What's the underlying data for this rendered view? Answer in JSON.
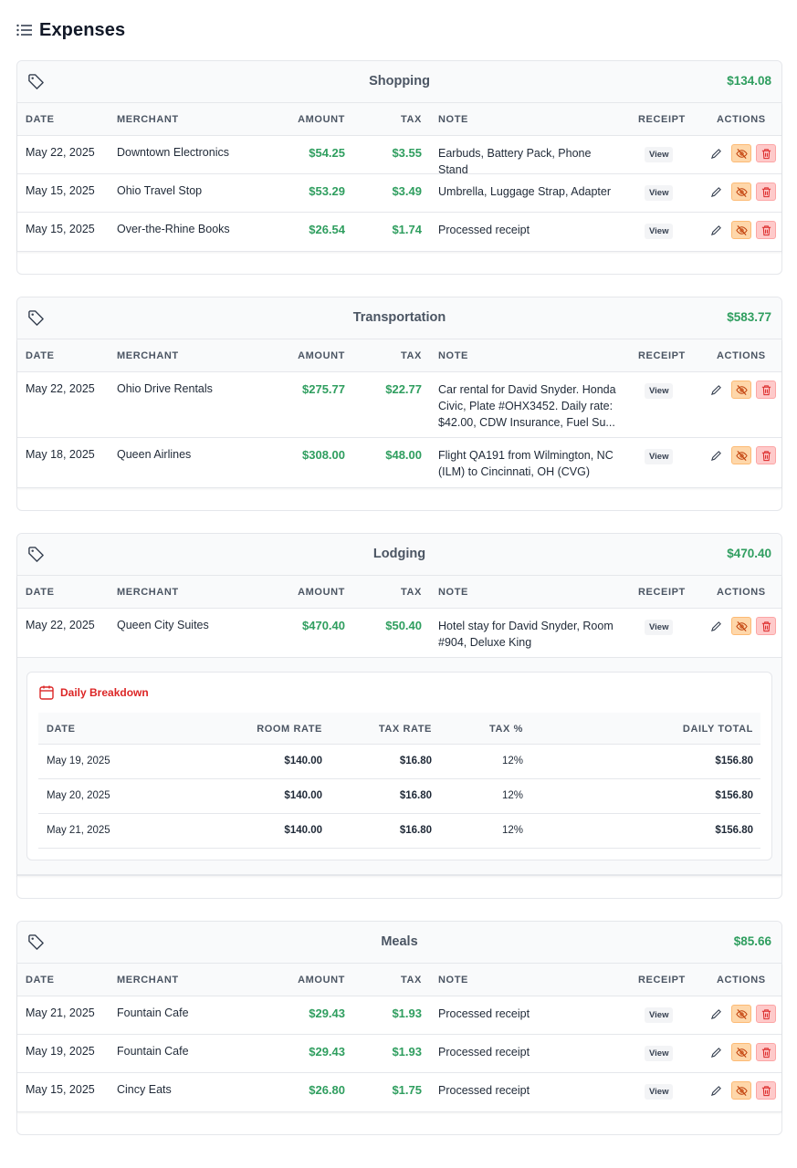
{
  "page": {
    "title": "Expenses"
  },
  "columns": {
    "date": "DATE",
    "merchant": "MERCHANT",
    "amount": "AMOUNT",
    "tax": "TAX",
    "note": "NOTE",
    "receipt": "RECEIPT",
    "actions": "ACTIONS"
  },
  "receipt_label": "View",
  "colors": {
    "money": "#2f9e5f",
    "danger": "#dc2626",
    "hide_bg": "#fed7aa",
    "delete_bg": "#fecaca"
  },
  "groups": [
    {
      "title": "Shopping",
      "total": "$134.08",
      "rows": [
        {
          "date": "May 22, 2025",
          "merchant": "Downtown Electronics",
          "amount": "$54.25",
          "tax": "$3.55",
          "note": "Earbuds, Battery Pack, Phone Stand"
        },
        {
          "date": "May 15, 2025",
          "merchant": "Ohio Travel Stop",
          "amount": "$53.29",
          "tax": "$3.49",
          "note": "Umbrella, Luggage Strap, Adapter"
        },
        {
          "date": "May 15, 2025",
          "merchant": "Over-the-Rhine Books",
          "amount": "$26.54",
          "tax": "$1.74",
          "note": "Processed receipt"
        }
      ]
    },
    {
      "title": "Transportation",
      "total": "$583.77",
      "rows": [
        {
          "date": "May 22, 2025",
          "merchant": "Ohio Drive Rentals",
          "amount": "$275.77",
          "tax": "$22.77",
          "note": "Car rental for David Snyder. Honda Civic, Plate #OHX3452. Daily rate: $42.00, CDW Insurance, Fuel Su..."
        },
        {
          "date": "May 18, 2025",
          "merchant": "Queen Airlines",
          "amount": "$308.00",
          "tax": "$48.00",
          "note": "Flight QA191 from Wilmington, NC (ILM) to Cincinnati, OH (CVG)"
        }
      ]
    },
    {
      "title": "Lodging",
      "total": "$470.40",
      "rows": [
        {
          "date": "May 22, 2025",
          "merchant": "Queen City Suites",
          "amount": "$470.40",
          "tax": "$50.40",
          "note": "Hotel stay for David Snyder, Room #904, Deluxe King"
        }
      ],
      "breakdown": {
        "title": "Daily Breakdown",
        "columns": {
          "date": "DATE",
          "room_rate": "ROOM RATE",
          "tax_rate": "TAX RATE",
          "tax_pct": "TAX %",
          "daily_total": "DAILY TOTAL"
        },
        "rows": [
          {
            "date": "May 19, 2025",
            "room_rate": "$140.00",
            "tax_rate": "$16.80",
            "tax_pct": "12%",
            "daily_total": "$156.80"
          },
          {
            "date": "May 20, 2025",
            "room_rate": "$140.00",
            "tax_rate": "$16.80",
            "tax_pct": "12%",
            "daily_total": "$156.80"
          },
          {
            "date": "May 21, 2025",
            "room_rate": "$140.00",
            "tax_rate": "$16.80",
            "tax_pct": "12%",
            "daily_total": "$156.80"
          }
        ]
      }
    },
    {
      "title": "Meals",
      "total": "$85.66",
      "rows": [
        {
          "date": "May 21, 2025",
          "merchant": "Fountain Cafe",
          "amount": "$29.43",
          "tax": "$1.93",
          "note": "Processed receipt"
        },
        {
          "date": "May 19, 2025",
          "merchant": "Fountain Cafe",
          "amount": "$29.43",
          "tax": "$1.93",
          "note": "Processed receipt"
        },
        {
          "date": "May 15, 2025",
          "merchant": "Cincy Eats",
          "amount": "$26.80",
          "tax": "$1.75",
          "note": "Processed receipt"
        }
      ]
    }
  ]
}
